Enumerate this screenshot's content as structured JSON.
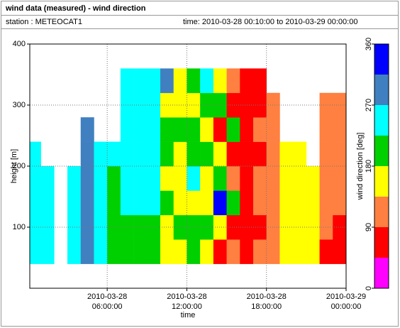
{
  "chart_data": {
    "type": "heatmap",
    "title": "wind data (measured) - wind direction",
    "station": "station : METEOCAT1",
    "period": "time: 2010-03-28 00:10:00 to 2010-03-29 00:00:00",
    "xlabel": "time",
    "ylabel": "height [m]",
    "colorbar_label": "wind direction [deg]",
    "xlim": [
      "2010-03-28 00:10:00",
      "2010-03-29 00:00:00"
    ],
    "xticks": [
      {
        "value": "2010-03-28 06:00:00",
        "label": "2010-03-28 06:00:00"
      },
      {
        "value": "2010-03-28 12:00:00",
        "label": "2010-03-28 12:00:00"
      },
      {
        "value": "2010-03-28 18:00:00",
        "label": "2010-03-28 18:00:00"
      },
      {
        "value": "2010-03-29 00:00:00",
        "label": "2010-03-29 00:00:00"
      }
    ],
    "ylim": [
      0,
      400
    ],
    "yticks": [
      100,
      200,
      300,
      400
    ],
    "grid": true,
    "x_bins": [
      "2010-03-28 00:10:00",
      "2010-03-28 01:00:00",
      "2010-03-28 02:00:00",
      "2010-03-28 03:00:00",
      "2010-03-28 04:00:00",
      "2010-03-28 05:00:00",
      "2010-03-28 06:00:00",
      "2010-03-28 07:00:00",
      "2010-03-28 08:00:00",
      "2010-03-28 09:00:00",
      "2010-03-28 10:00:00",
      "2010-03-28 11:00:00",
      "2010-03-28 12:00:00",
      "2010-03-28 13:00:00",
      "2010-03-28 14:00:00",
      "2010-03-28 15:00:00",
      "2010-03-28 16:00:00",
      "2010-03-28 17:00:00",
      "2010-03-28 18:00:00",
      "2010-03-28 19:00:00",
      "2010-03-28 20:00:00",
      "2010-03-28 21:00:00",
      "2010-03-28 22:00:00",
      "2010-03-28 23:00:00",
      "2010-03-29 00:00:00"
    ],
    "y_bins": [
      40,
      80,
      120,
      160,
      200,
      240,
      280,
      320,
      360
    ],
    "z": [
      [
        250,
        250,
        null,
        250,
        290,
        260,
        200,
        200,
        190,
        200,
        170,
        170,
        200,
        170,
        60,
        100,
        60,
        110,
        110,
        160,
        160,
        160,
        60,
        60
      ],
      [
        250,
        250,
        null,
        250,
        290,
        250,
        200,
        220,
        200,
        210,
        160,
        190,
        190,
        200,
        170,
        60,
        60,
        60,
        110,
        160,
        160,
        160,
        110,
        60
      ],
      [
        250,
        250,
        null,
        250,
        290,
        250,
        210,
        250,
        250,
        230,
        200,
        170,
        170,
        160,
        320,
        200,
        60,
        110,
        110,
        160,
        160,
        160,
        110,
        110
      ],
      [
        250,
        250,
        null,
        250,
        290,
        250,
        200,
        250,
        250,
        250,
        170,
        160,
        250,
        170,
        200,
        110,
        60,
        110,
        110,
        160,
        160,
        160,
        110,
        110
      ],
      [
        250,
        null,
        null,
        null,
        290,
        250,
        240,
        250,
        250,
        250,
        200,
        170,
        200,
        200,
        170,
        70,
        60,
        60,
        110,
        160,
        160,
        null,
        110,
        110
      ],
      [
        null,
        null,
        null,
        null,
        290,
        null,
        null,
        250,
        250,
        250,
        190,
        200,
        200,
        160,
        70,
        200,
        60,
        110,
        110,
        null,
        null,
        null,
        110,
        110
      ],
      [
        null,
        null,
        null,
        null,
        null,
        null,
        null,
        250,
        250,
        250,
        160,
        160,
        160,
        200,
        200,
        60,
        60,
        60,
        110,
        null,
        null,
        null,
        110,
        110
      ],
      [
        null,
        null,
        null,
        null,
        null,
        null,
        null,
        250,
        250,
        250,
        300,
        170,
        200,
        250,
        170,
        100,
        60,
        60,
        null,
        null,
        null,
        null,
        null,
        null
      ]
    ],
    "zlim": [
      0,
      360
    ],
    "zticks": [
      0,
      90,
      180,
      270,
      360
    ],
    "color_bounds": [
      0,
      45,
      90,
      135,
      180,
      225,
      270,
      315,
      360
    ],
    "colors": [
      "#ff00ff",
      "#ff0000",
      "#ff8040",
      "#ffff00",
      "#00d000",
      "#00ffff",
      "#4080c0",
      "#0000ff"
    ]
  }
}
